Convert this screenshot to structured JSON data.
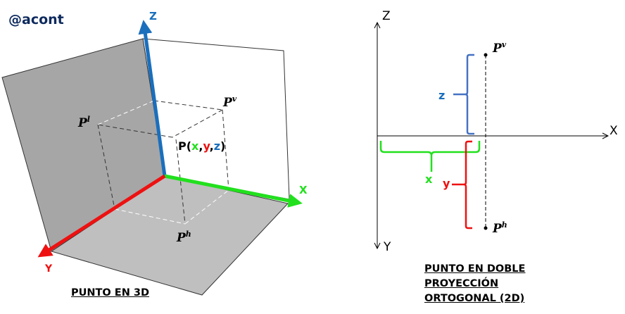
{
  "watermark": "@acont",
  "left_diagram": {
    "title": "PUNTO EN 3D",
    "axis_z": "Z",
    "axis_x": "X",
    "axis_y": "Y",
    "point_label_prefix": "P(",
    "coord_x": "x",
    "comma1": ",",
    "coord_y": "y",
    "comma2": ",",
    "coord_z": "z",
    "point_label_suffix": ")",
    "proj_lateral": "P",
    "proj_lateral_sup": "l",
    "proj_vertical": "P",
    "proj_vertical_sup": "v",
    "proj_horizontal": "P",
    "proj_horizontal_sup": "h"
  },
  "right_diagram": {
    "title_lines": [
      "PUNTO EN DOBLE",
      "PROYECCIÓN",
      "ORTOGONAL (2D)"
    ],
    "axis_z": "Z",
    "axis_x": "X",
    "axis_y": "Y",
    "dim_z": "z",
    "dim_x": "x",
    "dim_y": "y",
    "proj_vertical": "P",
    "proj_vertical_sup": "v",
    "proj_horizontal": "P",
    "proj_horizontal_sup": "h"
  },
  "colors": {
    "x": "#22e01e",
    "y": "#ee1111",
    "z": "#1a6fbd",
    "z_bracket": "#4472c4",
    "wall": "#a6a6a6",
    "floor": "#bfbfbf",
    "watermark": "#0d2a5e"
  }
}
